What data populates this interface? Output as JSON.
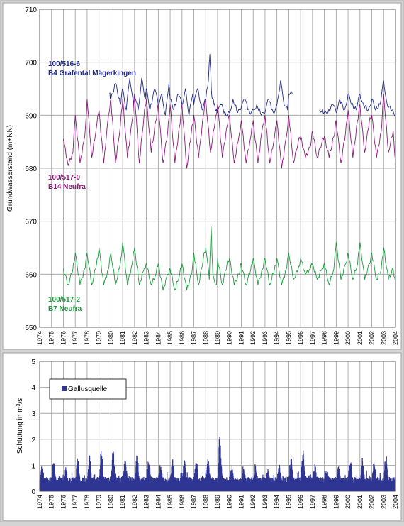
{
  "chart_data": [
    {
      "type": "line",
      "xlim": [
        1974,
        2004
      ],
      "ylim": [
        650,
        710
      ],
      "yticks": [
        650,
        660,
        670,
        680,
        690,
        700,
        710
      ],
      "xticks": [
        "1974",
        "1975",
        "1976",
        "1977",
        "1978",
        "1979",
        "1980",
        "1981",
        "1982",
        "1983",
        "1984",
        "1985",
        "1986",
        "1987",
        "1988",
        "1989",
        "1990",
        "1991",
        "1992",
        "1993",
        "1994",
        "1995",
        "1996",
        "1997",
        "1998",
        "1999",
        "2000",
        "2001",
        "2002",
        "2003",
        "2004"
      ],
      "ylabel": "Grundwasserstand (m+NN)",
      "grid": true,
      "series": [
        {
          "id_label": "100/516-6",
          "name": "B4 Grafental Mägerkingen",
          "color": "#1f2a8c",
          "segments": [
            {
              "x": [
                1979.9,
                1980.0,
                1980.4,
                1980.8,
                1981.0,
                1981.3,
                1981.6,
                1981.9,
                1982.0,
                1982.3,
                1982.6,
                1982.9,
                1983.0,
                1983.3,
                1983.7,
                1984.0,
                1984.3,
                1984.6,
                1984.9,
                1985.0,
                1985.3,
                1985.7,
                1986.0,
                1986.3,
                1986.6,
                1986.9,
                1987.0,
                1987.3,
                1987.7,
                1988.0,
                1988.2,
                1988.35,
                1988.5,
                1988.7,
                1988.9,
                1989.0,
                1989.3,
                1989.7,
                1990.0,
                1990.3,
                1990.7,
                1991.0,
                1991.3,
                1991.7,
                1992.0,
                1992.3,
                1992.7,
                1993.0,
                1993.3,
                1993.7,
                1994.0,
                1994.3,
                1994.6,
                1994.9,
                1995.0,
                1995.3
              ],
              "y": [
                694,
                693,
                696,
                692,
                695,
                691,
                697,
                692,
                694,
                691,
                697,
                693,
                695,
                691,
                695,
                692,
                694,
                690,
                696,
                693,
                691,
                694,
                692,
                695,
                690,
                694,
                692,
                695,
                691,
                693,
                696,
                701.5,
                694,
                692,
                691,
                690.5,
                692,
                690,
                690.5,
                693,
                690.5,
                691.5,
                693,
                690.5,
                691,
                692,
                690,
                690.5,
                693,
                690.5,
                692,
                696.5,
                692,
                691,
                694,
                694
              ]
            },
            {
              "x": [
                1997.6,
                1998.0,
                1998.3,
                1998.7,
                1999.0,
                1999.3,
                1999.7,
                2000.0,
                2000.3,
                2000.7,
                2001.0,
                2001.3,
                2001.7,
                2002.0,
                2002.3,
                2002.7,
                2003.0,
                2003.3,
                2003.7,
                2004.0
              ],
              "y": [
                691,
                690.5,
                690.5,
                692,
                690.5,
                693,
                691,
                694,
                692,
                691,
                694,
                692,
                691,
                693,
                691,
                692,
                696.5,
                692,
                691,
                690
              ]
            }
          ]
        },
        {
          "id_label": "100/517-0",
          "name": "B14 Neufra",
          "color": "#8a1a7a",
          "segments": [
            {
              "x": [
                1976.0,
                1976.4,
                1976.8,
                1977.0,
                1977.4,
                1977.8,
                1978.0,
                1978.4,
                1978.8,
                1979.0,
                1979.4,
                1979.8,
                1980.0,
                1980.4,
                1980.8,
                1981.0,
                1981.4,
                1981.8,
                1982.0,
                1982.4,
                1982.8,
                1983.0,
                1983.4,
                1983.8,
                1984.0,
                1984.4,
                1984.8,
                1985.0,
                1985.4,
                1985.8,
                1986.0,
                1986.4,
                1986.8,
                1987.0,
                1987.4,
                1987.8,
                1988.0,
                1988.4,
                1988.8,
                1989.0,
                1989.4,
                1989.8,
                1990.0,
                1990.4,
                1990.8,
                1991.0,
                1991.4,
                1991.8,
                1992.0,
                1992.4,
                1992.8,
                1993.0,
                1993.4,
                1993.8,
                1994.0,
                1994.4,
                1994.8,
                1995.0,
                1995.4,
                1995.8,
                1996.0,
                1996.4,
                1996.8,
                1997.0,
                1997.4,
                1997.8,
                1998.0,
                1998.4,
                1998.8,
                1999.0,
                1999.4,
                1999.8,
                2000.0,
                2000.4,
                2000.8,
                2001.0,
                2001.4,
                2001.8,
                2002.0,
                2002.4,
                2002.8,
                2003.0,
                2003.4,
                2003.8,
                2004.0
              ],
              "y": [
                685.5,
                680.5,
                683,
                690,
                681,
                686,
                693,
                682,
                688,
                691,
                681,
                690,
                693,
                681,
                688,
                693,
                682,
                689,
                694,
                681,
                690,
                693,
                683,
                689,
                692,
                681,
                687,
                692,
                681,
                688,
                692,
                680,
                687,
                690,
                682,
                690,
                693,
                683,
                689,
                692,
                682,
                688,
                690,
                681,
                686,
                689,
                681,
                686,
                689,
                681,
                688,
                690,
                681,
                686,
                689,
                680,
                686,
                690,
                681,
                685,
                686,
                682,
                684,
                687,
                682,
                685,
                686,
                682,
                686,
                689,
                681,
                687,
                691,
                682,
                689,
                692,
                683,
                689,
                690,
                682,
                687,
                694,
                683,
                687,
                681
              ]
            }
          ]
        },
        {
          "id_label": "100/517-2",
          "name": "B7 Neufra",
          "color": "#1a9a3c",
          "segments": [
            {
              "x": [
                1976.0,
                1976.4,
                1976.8,
                1977.0,
                1977.4,
                1977.8,
                1978.0,
                1978.4,
                1978.8,
                1979.0,
                1979.4,
                1979.8,
                1980.0,
                1980.4,
                1980.8,
                1981.0,
                1981.4,
                1981.8,
                1982.0,
                1982.4,
                1982.8,
                1983.0,
                1983.4,
                1983.8,
                1984.0,
                1984.4,
                1984.8,
                1985.0,
                1985.4,
                1985.8,
                1986.0,
                1986.4,
                1986.8,
                1987.0,
                1987.4,
                1987.8,
                1988.0,
                1988.3,
                1988.45,
                1988.6,
                1988.9,
                1989.0,
                1989.4,
                1989.8,
                1990.0,
                1990.4,
                1990.8,
                1991.0,
                1991.4,
                1991.8,
                1992.0,
                1992.4,
                1992.8,
                1993.0,
                1993.4,
                1993.8,
                1994.0,
                1994.4,
                1994.8,
                1995.0,
                1995.4,
                1995.8,
                1996.0,
                1996.4,
                1996.8,
                1997.0,
                1997.4,
                1997.8,
                1998.0,
                1998.4,
                1998.8,
                1999.0,
                1999.4,
                1999.8,
                2000.0,
                2000.4,
                2000.8,
                2001.0,
                2001.4,
                2001.8,
                2002.0,
                2002.4,
                2002.8,
                2003.0,
                2003.4,
                2003.8,
                2004.0
              ],
              "y": [
                661,
                658,
                661,
                664,
                658,
                661,
                664,
                658,
                662,
                665,
                658,
                661,
                664,
                658,
                662,
                666,
                658,
                662,
                665,
                658,
                661,
                662,
                658,
                660,
                662,
                657,
                660,
                661,
                657,
                660,
                662,
                657,
                660,
                664,
                658,
                663,
                665,
                659,
                669,
                660,
                658,
                663,
                658,
                662,
                663,
                658,
                660,
                662,
                658,
                661,
                663,
                658,
                661,
                663,
                658,
                661,
                663,
                658,
                661,
                664,
                659,
                661,
                663,
                660,
                661,
                662,
                659,
                661,
                662,
                658,
                661,
                666,
                659,
                662,
                664,
                659,
                662,
                666,
                659,
                662,
                664,
                659,
                661,
                665,
                659,
                661,
                658
              ]
            }
          ]
        }
      ]
    },
    {
      "type": "bar",
      "xlim": [
        1974,
        2004
      ],
      "ylim": [
        0,
        5
      ],
      "yticks": [
        0,
        1,
        2,
        3,
        4,
        5
      ],
      "xticks": [
        "1974",
        "1975",
        "1976",
        "1977",
        "1978",
        "1979",
        "1980",
        "1981",
        "1982",
        "1983",
        "1984",
        "1985",
        "1986",
        "1987",
        "1988",
        "1989",
        "1990",
        "1991",
        "1992",
        "1993",
        "1994",
        "1995",
        "1996",
        "1997",
        "1998",
        "1999",
        "2000",
        "2001",
        "2002",
        "2003",
        "2004"
      ],
      "ylabel_prefix": "Schüttung in m",
      "ylabel_sup": "3",
      "ylabel_suffix": "/s",
      "grid": true,
      "legend_placement": "top-left",
      "series": [
        {
          "name": "Gallusquelle",
          "color": "#2e3592",
          "annual_peaks": [
            1.0,
            1.1,
            0.8,
            1.2,
            1.4,
            1.5,
            1.7,
            1.3,
            1.4,
            1.2,
            1.0,
            1.3,
            1.1,
            1.2,
            1.3,
            2.3,
            1.0,
            0.8,
            0.9,
            0.8,
            1.0,
            1.3,
            1.6,
            1.0,
            0.8,
            0.9,
            1.3,
            1.2,
            1.1,
            1.3
          ]
        }
      ]
    }
  ]
}
